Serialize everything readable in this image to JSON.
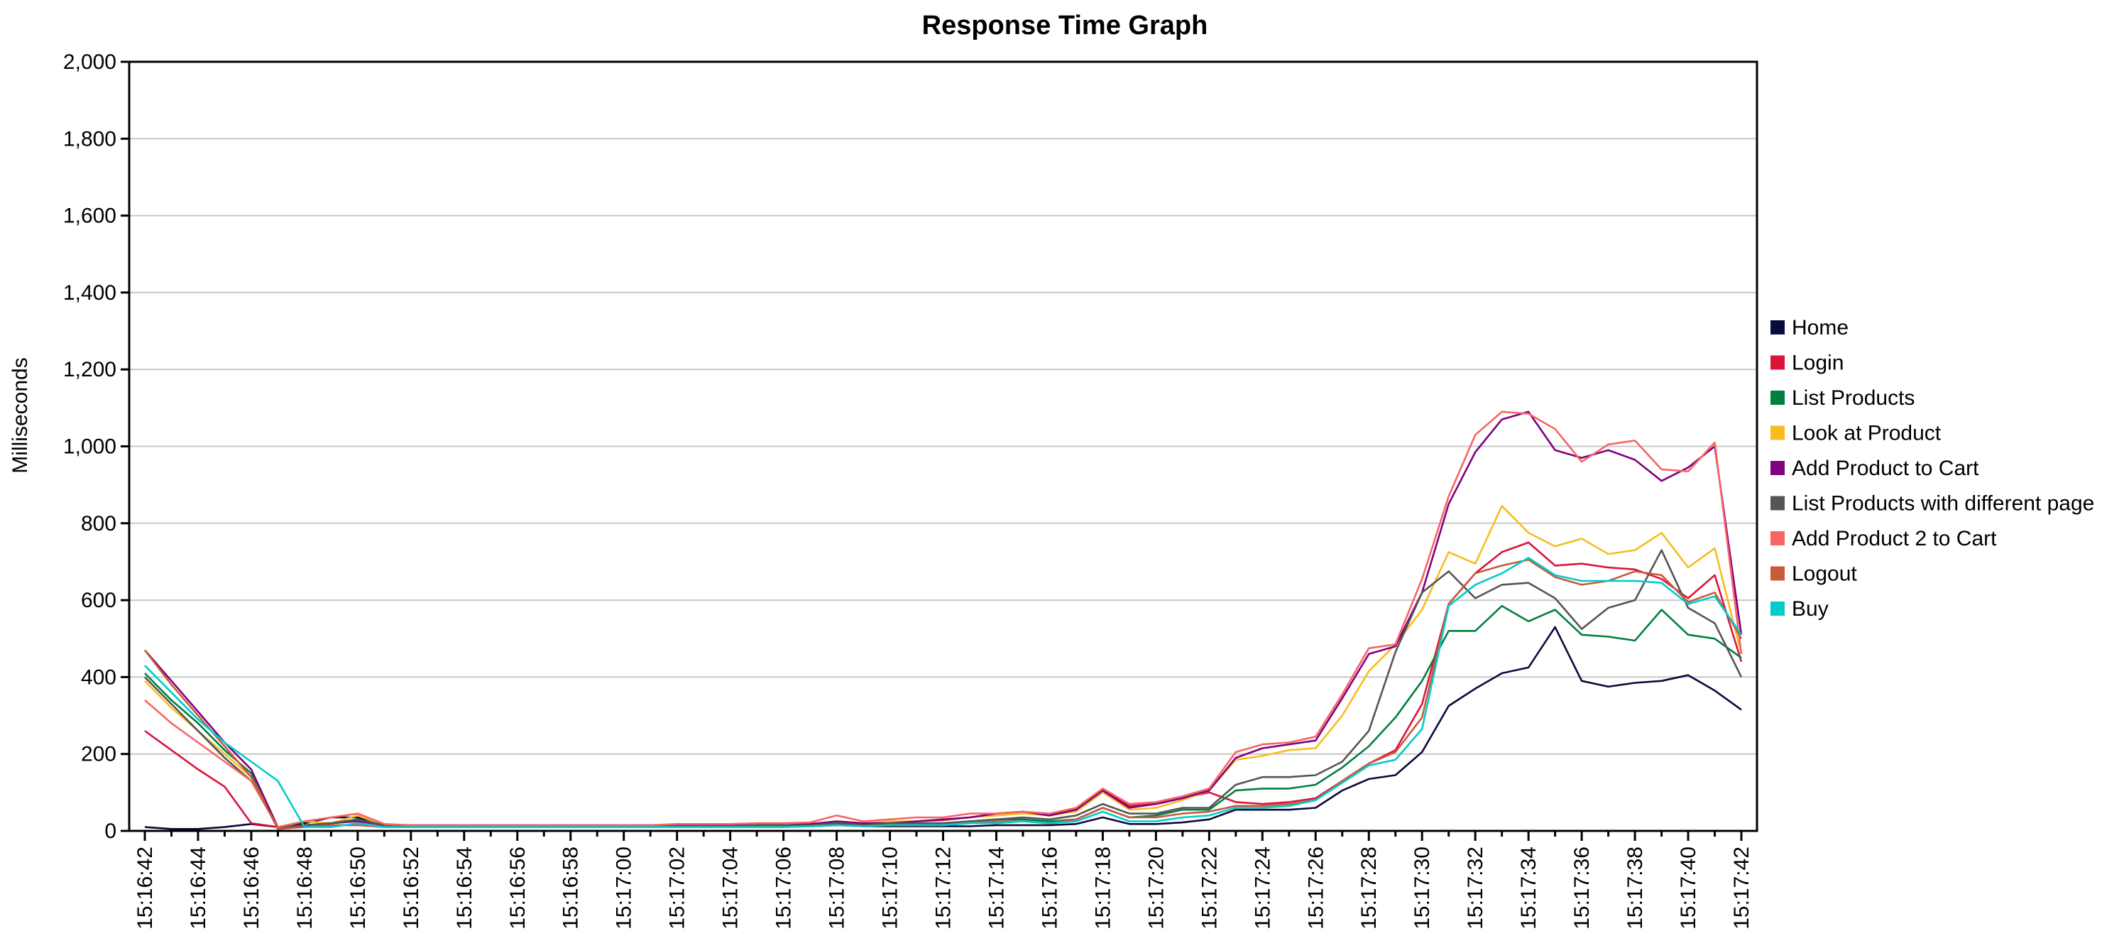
{
  "chart_data": {
    "type": "line",
    "title": "Response Time Graph",
    "xlabel": "",
    "ylabel": "Milliseconds",
    "ylim": [
      0,
      2000
    ],
    "y_ticks": [
      0,
      200,
      400,
      600,
      800,
      1000,
      1200,
      1400,
      1600,
      1800,
      2000
    ],
    "y_tick_labels": [
      "0",
      "200",
      "400",
      "600",
      "800",
      "1,000",
      "1,200",
      "1,400",
      "1,600",
      "1,800",
      "2,000"
    ],
    "grid": true,
    "legend_position": "right",
    "x": [
      "15:16:42",
      "15:16:43",
      "15:16:44",
      "15:16:45",
      "15:16:46",
      "15:16:47",
      "15:16:48",
      "15:16:49",
      "15:16:50",
      "15:16:51",
      "15:16:52",
      "15:16:53",
      "15:16:54",
      "15:16:55",
      "15:16:56",
      "15:16:57",
      "15:16:58",
      "15:16:59",
      "15:17:00",
      "15:17:01",
      "15:17:02",
      "15:17:03",
      "15:17:04",
      "15:17:05",
      "15:17:06",
      "15:17:07",
      "15:17:08",
      "15:17:09",
      "15:17:10",
      "15:17:11",
      "15:17:12",
      "15:17:13",
      "15:17:14",
      "15:17:15",
      "15:17:16",
      "15:17:17",
      "15:17:18",
      "15:17:19",
      "15:17:20",
      "15:17:21",
      "15:17:22",
      "15:17:23",
      "15:17:24",
      "15:17:25",
      "15:17:26",
      "15:17:27",
      "15:17:28",
      "15:17:29",
      "15:17:30",
      "15:17:31",
      "15:17:32",
      "15:17:33",
      "15:17:34",
      "15:17:35",
      "15:17:36",
      "15:17:37",
      "15:17:38",
      "15:17:39",
      "15:17:40",
      "15:17:41",
      "15:17:42"
    ],
    "x_tick_labels": [
      "15:16:42",
      "15:16:44",
      "15:16:46",
      "15:16:48",
      "15:16:50",
      "15:16:52",
      "15:16:54",
      "15:16:56",
      "15:16:58",
      "15:17:00",
      "15:17:02",
      "15:17:04",
      "15:17:06",
      "15:17:08",
      "15:17:10",
      "15:17:12",
      "15:17:14",
      "15:17:16",
      "15:17:18",
      "15:17:20",
      "15:17:22",
      "15:17:24",
      "15:17:26",
      "15:17:28",
      "15:17:30",
      "15:17:32",
      "15:17:34",
      "15:17:36",
      "15:17:38",
      "15:17:40",
      "15:17:42"
    ],
    "series": [
      {
        "name": "Home",
        "color": "#0a0a3c",
        "values": [
          10,
          5,
          5,
          10,
          18,
          10,
          20,
          35,
          35,
          15,
          12,
          12,
          12,
          12,
          12,
          12,
          12,
          12,
          12,
          12,
          12,
          12,
          12,
          12,
          12,
          12,
          15,
          12,
          12,
          12,
          12,
          12,
          15,
          15,
          15,
          18,
          35,
          18,
          18,
          22,
          30,
          55,
          55,
          55,
          60,
          105,
          135,
          145,
          205,
          325,
          370,
          410,
          425,
          530,
          390,
          375,
          385,
          390,
          405,
          365,
          315
        ]
      },
      {
        "name": "Login",
        "color": "#dc143c",
        "values": [
          260,
          210,
          160,
          115,
          20,
          10,
          15,
          15,
          15,
          12,
          12,
          12,
          12,
          12,
          12,
          12,
          12,
          12,
          12,
          12,
          12,
          12,
          12,
          12,
          12,
          15,
          20,
          20,
          20,
          25,
          28,
          35,
          45,
          50,
          40,
          55,
          105,
          65,
          70,
          85,
          100,
          75,
          70,
          75,
          85,
          130,
          175,
          210,
          330,
          590,
          670,
          725,
          750,
          690,
          695,
          685,
          680,
          655,
          605,
          665,
          440
        ]
      },
      {
        "name": "List Products",
        "color": "#008040",
        "values": [
          410,
          340,
          280,
          210,
          150,
          10,
          15,
          20,
          30,
          15,
          12,
          12,
          12,
          12,
          12,
          12,
          12,
          12,
          12,
          12,
          12,
          12,
          12,
          15,
          15,
          15,
          20,
          15,
          20,
          20,
          20,
          25,
          30,
          30,
          25,
          30,
          60,
          35,
          40,
          55,
          55,
          105,
          110,
          110,
          120,
          165,
          220,
          295,
          390,
          520,
          520,
          585,
          545,
          575,
          510,
          505,
          495,
          575,
          510,
          500,
          450
        ]
      },
      {
        "name": "Look at Product",
        "color": "#f7bd20",
        "values": [
          390,
          320,
          260,
          200,
          140,
          10,
          25,
          20,
          40,
          15,
          12,
          12,
          12,
          12,
          12,
          12,
          12,
          12,
          12,
          12,
          12,
          15,
          15,
          15,
          15,
          18,
          25,
          20,
          25,
          25,
          30,
          35,
          40,
          45,
          40,
          50,
          100,
          55,
          60,
          80,
          105,
          185,
          195,
          210,
          215,
          300,
          415,
          485,
          575,
          725,
          695,
          845,
          775,
          740,
          760,
          720,
          730,
          775,
          685,
          735,
          460
        ]
      },
      {
        "name": "Add Product to Cart",
        "color": "#800080",
        "values": [
          470,
          390,
          310,
          230,
          160,
          10,
          10,
          20,
          25,
          15,
          15,
          15,
          15,
          15,
          15,
          15,
          15,
          15,
          15,
          15,
          15,
          15,
          15,
          15,
          15,
          18,
          25,
          20,
          20,
          25,
          30,
          35,
          45,
          50,
          40,
          55,
          105,
          60,
          70,
          85,
          105,
          190,
          215,
          225,
          235,
          345,
          460,
          480,
          620,
          850,
          985,
          1070,
          1090,
          990,
          970,
          990,
          965,
          910,
          945,
          1000,
          510
        ]
      },
      {
        "name": "List Products with different page",
        "color": "#555555",
        "values": [
          400,
          330,
          260,
          190,
          130,
          10,
          15,
          20,
          30,
          15,
          12,
          12,
          12,
          12,
          12,
          12,
          12,
          12,
          12,
          12,
          12,
          12,
          12,
          15,
          15,
          15,
          20,
          15,
          20,
          20,
          20,
          25,
          30,
          35,
          30,
          40,
          70,
          45,
          45,
          60,
          60,
          120,
          140,
          140,
          145,
          180,
          260,
          465,
          620,
          675,
          605,
          640,
          645,
          605,
          525,
          580,
          600,
          730,
          580,
          540,
          400
        ]
      },
      {
        "name": "Add Product 2 to Cart",
        "color": "#f86464",
        "values": [
          340,
          280,
          230,
          180,
          130,
          10,
          25,
          35,
          45,
          18,
          15,
          15,
          15,
          15,
          15,
          15,
          15,
          15,
          15,
          15,
          18,
          18,
          18,
          20,
          20,
          22,
          40,
          25,
          30,
          35,
          35,
          45,
          45,
          50,
          45,
          60,
          110,
          70,
          75,
          90,
          110,
          205,
          225,
          230,
          245,
          355,
          475,
          485,
          655,
          870,
          1030,
          1090,
          1085,
          1045,
          960,
          1005,
          1015,
          940,
          935,
          1010,
          460
        ]
      },
      {
        "name": "Logout",
        "color": "#c85a3c",
        "values": [
          470,
          380,
          300,
          220,
          140,
          5,
          10,
          15,
          15,
          10,
          10,
          10,
          10,
          10,
          10,
          10,
          10,
          10,
          10,
          10,
          10,
          10,
          10,
          10,
          10,
          12,
          15,
          12,
          15,
          15,
          15,
          20,
          25,
          25,
          20,
          30,
          60,
          35,
          35,
          45,
          50,
          65,
          65,
          70,
          80,
          130,
          175,
          205,
          295,
          590,
          670,
          690,
          705,
          660,
          640,
          650,
          675,
          665,
          595,
          620,
          500
        ]
      },
      {
        "name": "Buy",
        "color": "#00cccc",
        "values": [
          430,
          360,
          290,
          230,
          180,
          130,
          10,
          10,
          20,
          10,
          10,
          10,
          10,
          10,
          10,
          10,
          10,
          10,
          10,
          10,
          10,
          10,
          10,
          10,
          10,
          12,
          15,
          12,
          15,
          15,
          15,
          20,
          20,
          25,
          20,
          25,
          50,
          25,
          25,
          35,
          40,
          60,
          60,
          65,
          80,
          125,
          170,
          185,
          265,
          585,
          640,
          670,
          710,
          665,
          650,
          650,
          650,
          645,
          590,
          610,
          510
        ]
      }
    ]
  }
}
